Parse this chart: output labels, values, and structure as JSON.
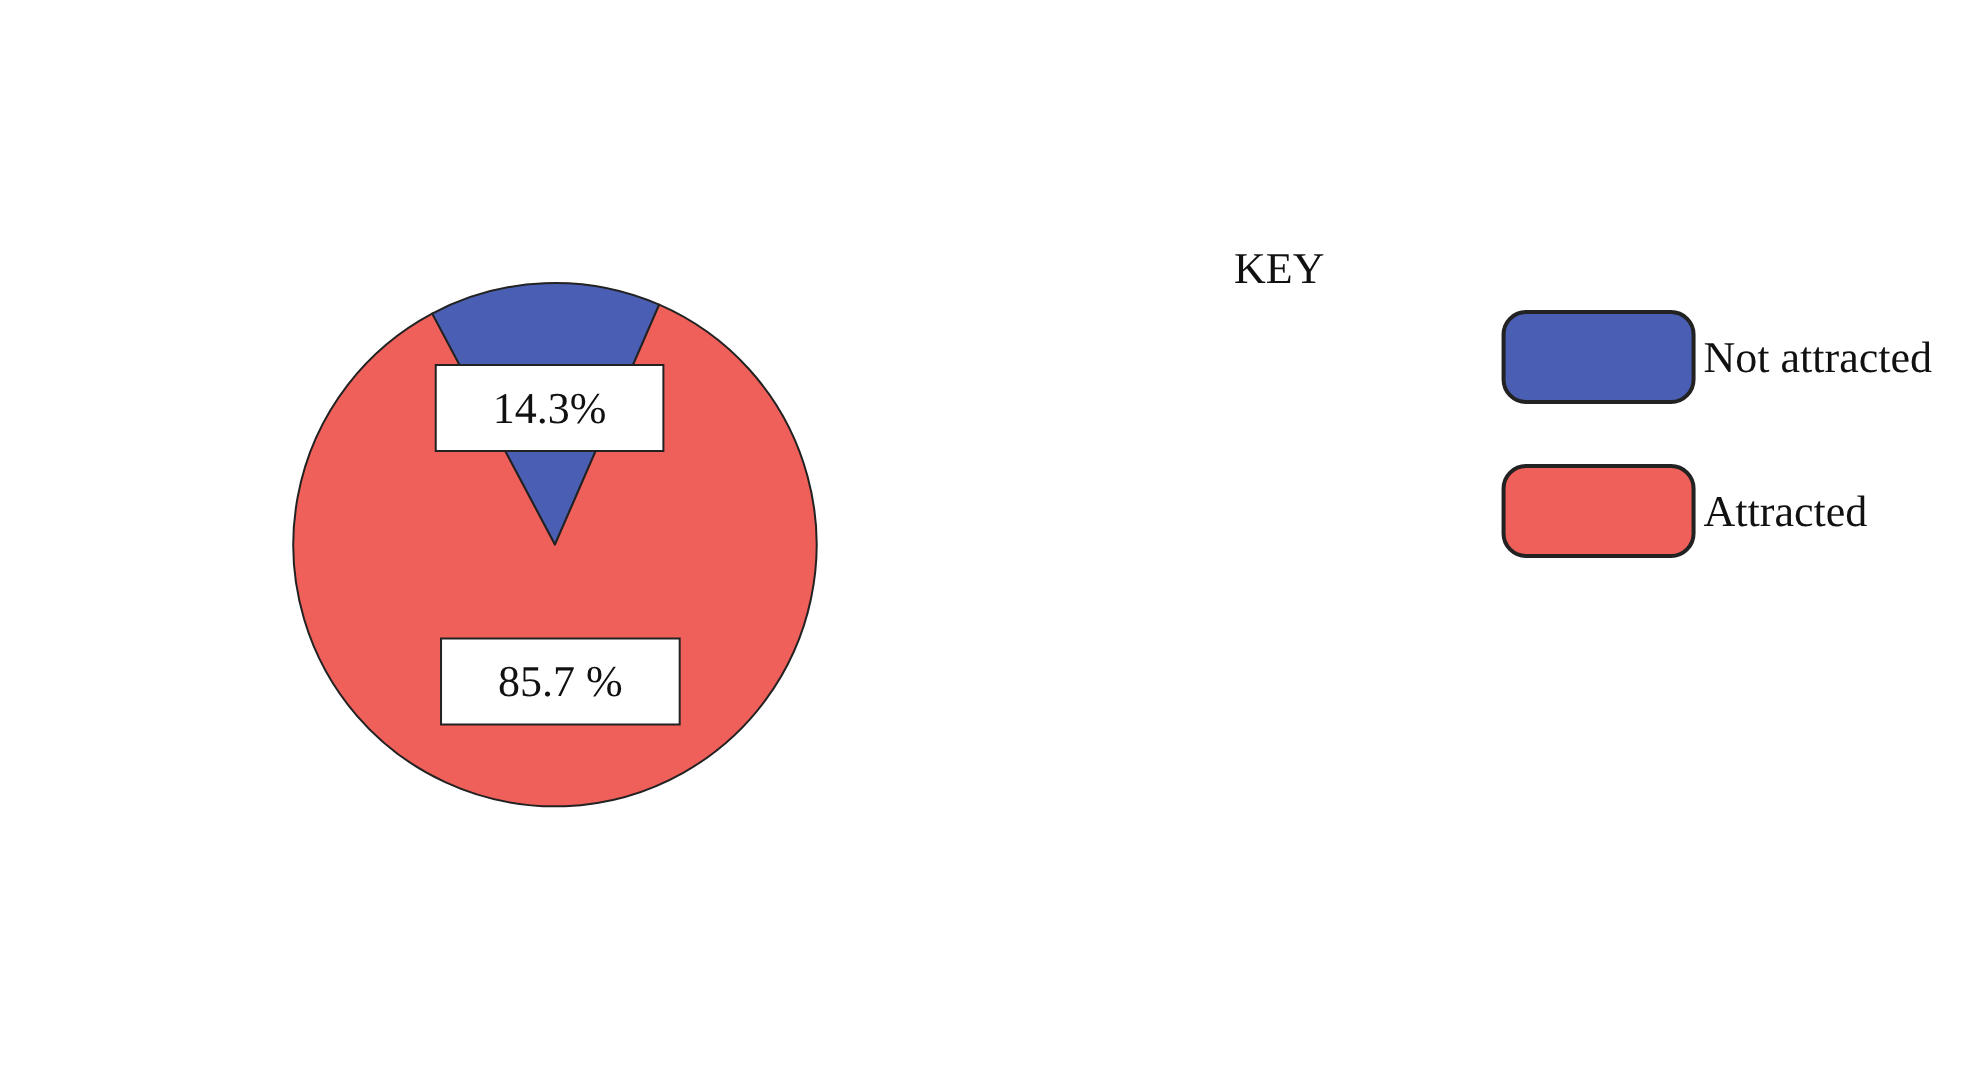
{
  "chart_data": {
    "type": "pie",
    "categories": [
      "Not attracted",
      "Attracted"
    ],
    "values": [
      14.3,
      85.7
    ],
    "colors": [
      "#4a5fb4",
      "#f0605a"
    ],
    "value_labels": [
      "14.3%",
      "85.7 %"
    ],
    "legend_title": "KEY",
    "legend": "right"
  }
}
